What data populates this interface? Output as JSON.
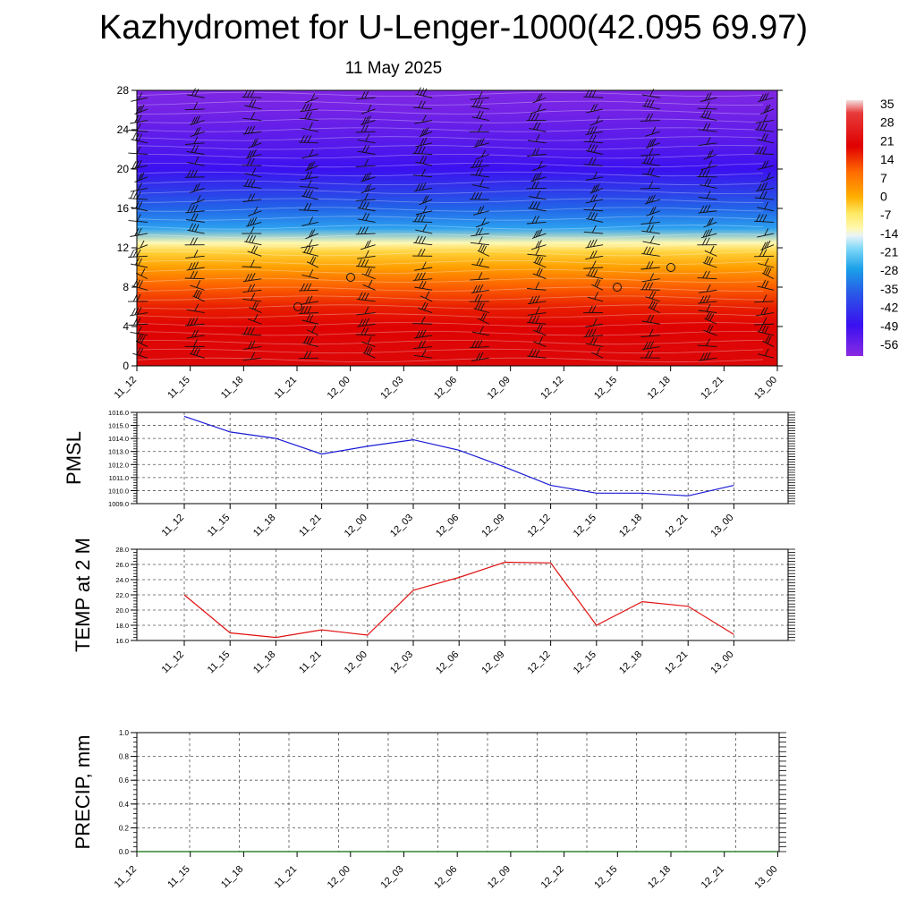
{
  "title": "Kazhydromet for U-Lenger-1000(42.095 69.97)",
  "subtitle": "11 May 2025",
  "colors": {
    "pmsl_line": "#1a1ad6",
    "temp_line": "#e01010",
    "precip_line": "#0a6a0a",
    "grid": "#555555"
  },
  "chart_data": [
    {
      "type": "heatmap",
      "x_ticks": [
        "11_12",
        "11_15",
        "11_18",
        "11_21",
        "12_00",
        "12_03",
        "12_06",
        "12_09",
        "12_12",
        "12_15",
        "12_18",
        "12_21",
        "13_00"
      ],
      "y_ticks": [
        "0",
        "4",
        "8",
        "12",
        "16",
        "20",
        "24",
        "28"
      ],
      "ylim": [
        0,
        28
      ],
      "colorbar_labels": [
        "35",
        "28",
        "21",
        "14",
        "7",
        "0",
        "-7",
        "-14",
        "-21",
        "-28",
        "-35",
        "-42",
        "-49",
        "-56"
      ],
      "temperature_profile": {
        "height": [
          0,
          2,
          4,
          6,
          8,
          10,
          11.5,
          12.5,
          14,
          16,
          18,
          20,
          22,
          24,
          26,
          28
        ],
        "temp": [
          30,
          27,
          22,
          17,
          11,
          4,
          -2,
          -12,
          -30,
          -40,
          -48,
          -56,
          -60,
          -63,
          -66,
          -68
        ]
      },
      "wind_barbs": "present",
      "grid": false
    },
    {
      "type": "line",
      "ylabel": "PMSL",
      "x_ticks": [
        "11_12",
        "11_15",
        "11_18",
        "11_21",
        "12_00",
        "12_03",
        "12_06",
        "12_09",
        "12_12",
        "12_15",
        "12_18",
        "12_21",
        "13_00"
      ],
      "y_ticks": [
        "1009.0",
        "1010.0",
        "1011.0",
        "1012.0",
        "1013.0",
        "1014.0",
        "1015.0",
        "1016.0"
      ],
      "ylim": [
        1009.0,
        1016.0
      ],
      "values": [
        1015.7,
        1014.5,
        1014.0,
        1012.8,
        1013.4,
        1013.9,
        1013.1,
        1011.8,
        1010.4,
        1009.8,
        1009.8,
        1009.6,
        1010.4
      ],
      "grid": true
    },
    {
      "type": "line",
      "ylabel": "TEMP at 2 M",
      "x_ticks": [
        "11_12",
        "11_15",
        "11_18",
        "11_21",
        "12_00",
        "12_03",
        "12_06",
        "12_09",
        "12_12",
        "12_15",
        "12_18",
        "12_21",
        "13_00"
      ],
      "y_ticks": [
        "16.0",
        "18.0",
        "20.0",
        "22.0",
        "24.0",
        "26.0",
        "28.0"
      ],
      "ylim": [
        16.0,
        28.0
      ],
      "values": [
        22.0,
        17.0,
        16.4,
        17.4,
        16.7,
        22.6,
        24.3,
        26.3,
        26.2,
        18.0,
        21.1,
        20.5,
        16.8
      ],
      "grid": true
    },
    {
      "type": "line",
      "ylabel": "PRECIP, mm",
      "x_ticks": [
        "11_12",
        "11_15",
        "11_18",
        "11_21",
        "12_00",
        "12_03",
        "12_06",
        "12_09",
        "12_12",
        "12_15",
        "12_18",
        "12_21",
        "13_00"
      ],
      "y_ticks": [
        "0.0",
        "0.2",
        "0.4",
        "0.6",
        "0.8",
        "1.0"
      ],
      "ylim": [
        0.0,
        1.0
      ],
      "values": [
        0,
        0,
        0,
        0,
        0,
        0,
        0,
        0,
        0,
        0,
        0,
        0,
        0
      ],
      "grid": true
    }
  ]
}
